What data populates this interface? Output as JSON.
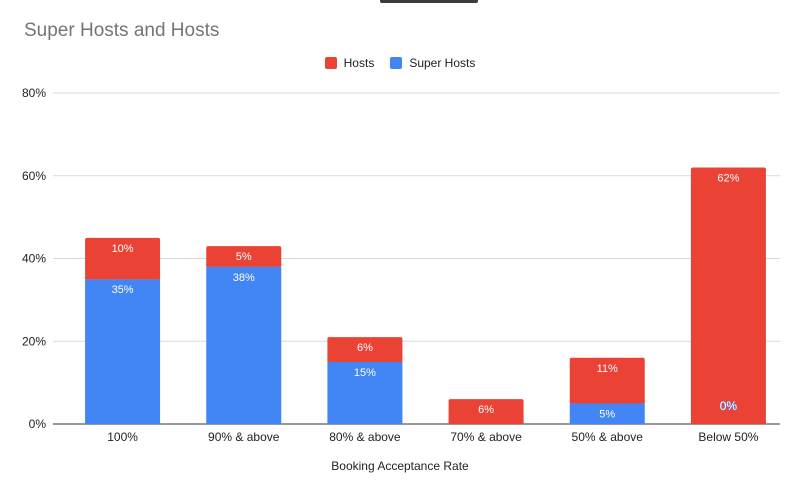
{
  "chart_data": {
    "type": "bar",
    "stacked": true,
    "title": "Super Hosts and Hosts",
    "xlabel": "Booking Acceptance Rate",
    "ylabel": "",
    "categories": [
      "100%",
      "90% & above",
      "80% & above",
      "70% & above",
      "50% & above",
      "Below 50%"
    ],
    "series": [
      {
        "name": "Super Hosts",
        "color": "#4285f4",
        "values": [
          35,
          38,
          15,
          0,
          5,
          0
        ],
        "labels": [
          "35%",
          "38%",
          "15%",
          "",
          "5%",
          "0%"
        ]
      },
      {
        "name": "Hosts",
        "color": "#ea4335",
        "values": [
          10,
          5,
          6,
          6,
          11,
          62
        ],
        "labels": [
          "10%",
          "5%",
          "6%",
          "6%",
          "11%",
          "62%"
        ]
      }
    ],
    "legend_order": [
      "Hosts",
      "Super Hosts"
    ],
    "legend_position": "top",
    "ylim": [
      0,
      80
    ],
    "yticks": [
      0,
      20,
      40,
      60,
      80
    ],
    "ytick_labels": [
      "0%",
      "20%",
      "40%",
      "60%",
      "80%"
    ],
    "grid": true
  }
}
